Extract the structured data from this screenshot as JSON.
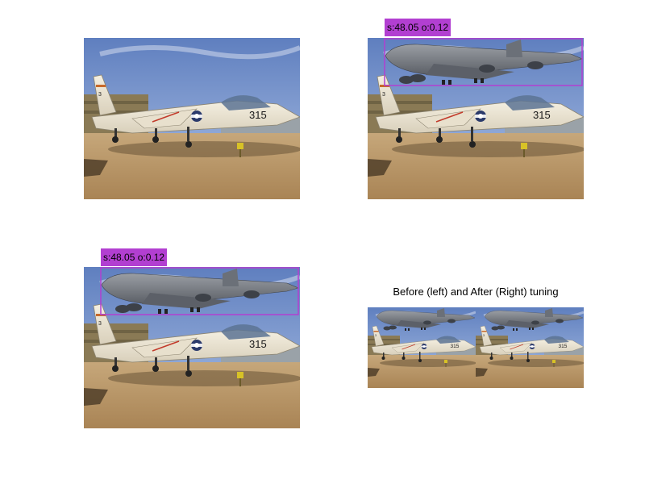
{
  "panels": [
    {
      "name": "original-image",
      "detection_label": null
    },
    {
      "name": "before-tuning-detection",
      "detection_label": "s:48.05 o:0.12"
    },
    {
      "name": "after-tuning-detection",
      "detection_label": "s:48.05 o:0.12"
    },
    {
      "name": "before-after-comparison",
      "title": "Before (left) and After (Right) tuning"
    }
  ],
  "aircraft_marking": "315",
  "tail_marking": "3",
  "colors": {
    "detection_box": "#b23fd1",
    "sky": "#6f8fc4",
    "ground": "#b8966a"
  }
}
